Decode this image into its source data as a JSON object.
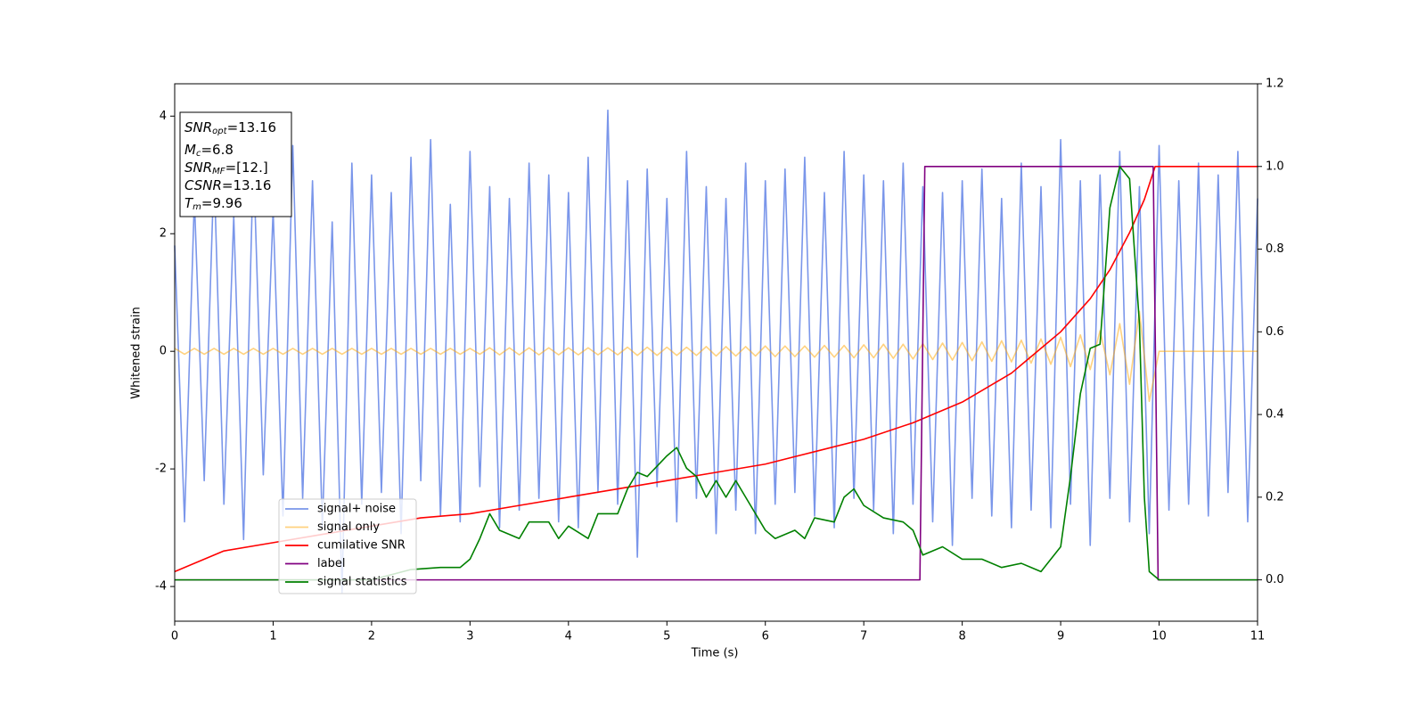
{
  "chart_data": {
    "type": "line",
    "xlabel": "Time (s)",
    "ylabel": "Whitened strain",
    "xlim": [
      0,
      11
    ],
    "xticks": [
      0,
      1,
      2,
      3,
      4,
      5,
      6,
      7,
      8,
      9,
      10,
      11
    ],
    "ylim": [
      -4.59,
      4.55
    ],
    "yticks": [
      -4,
      -2,
      0,
      2,
      4
    ],
    "y2lim": [
      -0.1,
      1.2
    ],
    "y2ticks": [
      {
        "value": 0,
        "label": "0.0"
      },
      0.2,
      0.4,
      0.6,
      0.8,
      {
        "value": 1,
        "label": "1.0"
      },
      1.2
    ],
    "legend": "lower-left",
    "annotations": [
      {
        "text": "SNR",
        "sub": "opt",
        "rest": "=13.16"
      },
      {
        "text": "M",
        "sub": "c",
        "rest": "=6.8"
      },
      {
        "text": "SNR",
        "sub": "MF",
        "rest": "=[12.]"
      },
      {
        "text": "CSNR",
        "rest": "=13.16"
      },
      {
        "text": "T",
        "sub": "m",
        "rest": "=9.96"
      }
    ],
    "series": [
      {
        "name": "signal+ noise",
        "color": "#4169e1",
        "alpha": 0.7,
        "x": [
          0,
          0.1,
          0.2,
          0.3,
          0.4,
          0.5,
          0.6,
          0.7,
          0.8,
          0.9,
          1,
          1.1,
          1.2,
          1.3,
          1.4,
          1.5,
          1.6,
          1.7,
          1.8,
          1.9,
          2,
          2.1,
          2.2,
          2.3,
          2.4,
          2.5,
          2.6,
          2.7,
          2.8,
          2.9,
          3,
          3.1,
          3.2,
          3.3,
          3.4,
          3.5,
          3.6,
          3.7,
          3.8,
          3.9,
          4,
          4.1,
          4.2,
          4.3,
          4.4,
          4.5,
          4.6,
          4.7,
          4.8,
          4.9,
          5,
          5.1,
          5.2,
          5.3,
          5.4,
          5.5,
          5.6,
          5.7,
          5.8,
          5.9,
          6,
          6.1,
          6.2,
          6.3,
          6.4,
          6.5,
          6.6,
          6.7,
          6.8,
          6.9,
          7,
          7.1,
          7.2,
          7.3,
          7.4,
          7.5,
          7.6,
          7.7,
          7.8,
          7.9,
          8,
          8.1,
          8.2,
          8.3,
          8.4,
          8.5,
          8.6,
          8.7,
          8.8,
          8.9,
          9,
          9.1,
          9.2,
          9.3,
          9.4,
          9.5,
          9.6,
          9.7,
          9.8,
          9.9,
          10,
          10.1,
          10.2,
          10.3,
          10.4,
          10.5,
          10.6,
          10.7,
          10.8,
          10.9,
          11
        ],
        "values": [
          1.8,
          -2.9,
          2.6,
          -2.2,
          3.1,
          -2.6,
          2.3,
          -3.2,
          3.3,
          -2.1,
          2.4,
          -2.8,
          3.5,
          -2.5,
          2.9,
          -3.0,
          2.2,
          -4.1,
          3.2,
          -2.6,
          3.0,
          -2.4,
          2.7,
          -3.1,
          3.3,
          -2.2,
          3.6,
          -2.8,
          2.5,
          -2.9,
          3.4,
          -2.3,
          2.8,
          -3.0,
          2.6,
          -2.7,
          3.2,
          -2.5,
          3.0,
          -2.9,
          2.7,
          -3.0,
          3.3,
          -2.4,
          4.1,
          -2.6,
          2.9,
          -3.5,
          3.1,
          -2.3,
          2.6,
          -2.9,
          3.4,
          -2.5,
          2.8,
          -3.1,
          2.6,
          -2.7,
          3.2,
          -3.1,
          2.9,
          -2.6,
          3.1,
          -2.4,
          3.3,
          -2.8,
          2.7,
          -3.0,
          3.4,
          -2.5,
          3.0,
          -2.7,
          2.9,
          -3.1,
          3.2,
          -2.6,
          2.8,
          -2.9,
          2.7,
          -3.3,
          2.9,
          -2.5,
          3.1,
          -2.8,
          2.6,
          -3.0,
          3.2,
          -2.7,
          2.8,
          -3.0,
          3.6,
          -2.6,
          2.9,
          -3.3,
          3.0,
          -2.5,
          3.4,
          -2.9,
          2.8,
          -3.1,
          3.5,
          -2.7,
          2.9,
          -2.6,
          3.2,
          -2.8,
          3.0,
          -2.4,
          3.4,
          -2.9,
          2.6
        ]
      },
      {
        "name": "signal only",
        "color": "#ffa500",
        "alpha": 0.5,
        "x": [
          0,
          0.1,
          0.2,
          0.3,
          0.4,
          0.5,
          0.6,
          0.7,
          0.8,
          0.9,
          1,
          1.1,
          1.2,
          1.3,
          1.4,
          1.5,
          1.6,
          1.7,
          1.8,
          1.9,
          2,
          2.1,
          2.2,
          2.3,
          2.4,
          2.5,
          2.6,
          2.7,
          2.8,
          2.9,
          3,
          3.1,
          3.2,
          3.3,
          3.4,
          3.5,
          3.6,
          3.7,
          3.8,
          3.9,
          4,
          4.1,
          4.2,
          4.3,
          4.4,
          4.5,
          4.6,
          4.7,
          4.8,
          4.9,
          5,
          5.1,
          5.2,
          5.3,
          5.4,
          5.5,
          5.6,
          5.7,
          5.8,
          5.9,
          6,
          6.1,
          6.2,
          6.3,
          6.4,
          6.5,
          6.6,
          6.7,
          6.8,
          6.9,
          7,
          7.1,
          7.2,
          7.3,
          7.4,
          7.5,
          7.6,
          7.7,
          7.8,
          7.9,
          8,
          8.1,
          8.2,
          8.3,
          8.4,
          8.5,
          8.6,
          8.7,
          8.8,
          8.9,
          9,
          9.1,
          9.2,
          9.3,
          9.4,
          9.5,
          9.6,
          9.7,
          9.8,
          9.9,
          10,
          10.1,
          10.2,
          10.3,
          10.4,
          10.5,
          10.6,
          10.7,
          10.8,
          10.9,
          11
        ],
        "values": [
          0.05,
          -0.05,
          0.05,
          -0.05,
          0.05,
          -0.05,
          0.05,
          -0.05,
          0.05,
          -0.05,
          0.05,
          -0.05,
          0.05,
          -0.05,
          0.05,
          -0.05,
          0.05,
          -0.05,
          0.05,
          -0.05,
          0.05,
          -0.05,
          0.05,
          -0.05,
          0.05,
          -0.05,
          0.05,
          -0.05,
          0.05,
          -0.05,
          0.05,
          -0.05,
          0.06,
          -0.06,
          0.06,
          -0.06,
          0.06,
          -0.06,
          0.06,
          -0.06,
          0.06,
          -0.06,
          0.06,
          -0.06,
          0.06,
          -0.06,
          0.07,
          -0.07,
          0.07,
          -0.07,
          0.07,
          -0.07,
          0.07,
          -0.07,
          0.08,
          -0.08,
          0.08,
          -0.08,
          0.08,
          -0.08,
          0.09,
          -0.09,
          0.09,
          -0.09,
          0.09,
          -0.1,
          0.1,
          -0.1,
          0.1,
          -0.11,
          0.11,
          -0.11,
          0.12,
          -0.12,
          0.12,
          -0.13,
          0.13,
          -0.14,
          0.14,
          -0.15,
          0.15,
          -0.16,
          0.16,
          -0.17,
          0.18,
          -0.18,
          0.19,
          -0.2,
          0.21,
          -0.22,
          0.24,
          -0.26,
          0.28,
          -0.31,
          0.35,
          -0.4,
          0.47,
          -0.56,
          0.68,
          -0.85,
          0,
          0,
          0,
          0,
          0,
          0,
          0,
          0,
          0,
          0,
          0
        ]
      },
      {
        "name": "cumilative SNR",
        "color": "#ff0000",
        "axis": "y2",
        "x": [
          0,
          0.5,
          1,
          1.5,
          2,
          2.5,
          3,
          3.5,
          4,
          4.5,
          5,
          5.5,
          6,
          6.5,
          7,
          7.5,
          8,
          8.5,
          9,
          9.3,
          9.5,
          9.7,
          9.85,
          9.96,
          10,
          11
        ],
        "values": [
          0.02,
          0.07,
          0.09,
          0.11,
          0.13,
          0.15,
          0.16,
          0.18,
          0.2,
          0.22,
          0.24,
          0.26,
          0.28,
          0.31,
          0.34,
          0.38,
          0.43,
          0.5,
          0.6,
          0.68,
          0.75,
          0.84,
          0.92,
          1.0,
          1.0,
          1.0
        ]
      },
      {
        "name": "label",
        "color": "#800080",
        "axis": "y2",
        "x": [
          0,
          7.57,
          7.62,
          9.94,
          9.99,
          11
        ],
        "values": [
          0,
          0,
          1,
          1,
          0,
          0
        ]
      },
      {
        "name": "signal statistics",
        "color": "#008000",
        "axis": "y2",
        "x": [
          0,
          2,
          2.4,
          2.7,
          2.9,
          3.0,
          3.1,
          3.2,
          3.3,
          3.5,
          3.6,
          3.8,
          3.9,
          4.0,
          4.2,
          4.3,
          4.5,
          4.6,
          4.7,
          4.8,
          5.0,
          5.1,
          5.2,
          5.3,
          5.4,
          5.5,
          5.6,
          5.7,
          5.8,
          6.0,
          6.1,
          6.3,
          6.4,
          6.5,
          6.7,
          6.8,
          6.9,
          7.0,
          7.2,
          7.4,
          7.5,
          7.6,
          7.7,
          7.8,
          8.0,
          8.2,
          8.4,
          8.6,
          8.8,
          9.0,
          9.1,
          9.2,
          9.3,
          9.4,
          9.5,
          9.6,
          9.7,
          9.8,
          9.85,
          9.9,
          10.0,
          11
        ],
        "values": [
          0,
          0,
          0.025,
          0.03,
          0.03,
          0.05,
          0.1,
          0.16,
          0.12,
          0.1,
          0.14,
          0.14,
          0.1,
          0.13,
          0.1,
          0.16,
          0.16,
          0.22,
          0.26,
          0.25,
          0.3,
          0.32,
          0.27,
          0.25,
          0.2,
          0.24,
          0.2,
          0.24,
          0.2,
          0.12,
          0.1,
          0.12,
          0.1,
          0.15,
          0.14,
          0.2,
          0.22,
          0.18,
          0.15,
          0.14,
          0.12,
          0.06,
          0.07,
          0.08,
          0.05,
          0.05,
          0.03,
          0.04,
          0.02,
          0.08,
          0.25,
          0.45,
          0.56,
          0.57,
          0.9,
          1.0,
          0.97,
          0.62,
          0.2,
          0.02,
          0,
          0
        ]
      }
    ]
  }
}
